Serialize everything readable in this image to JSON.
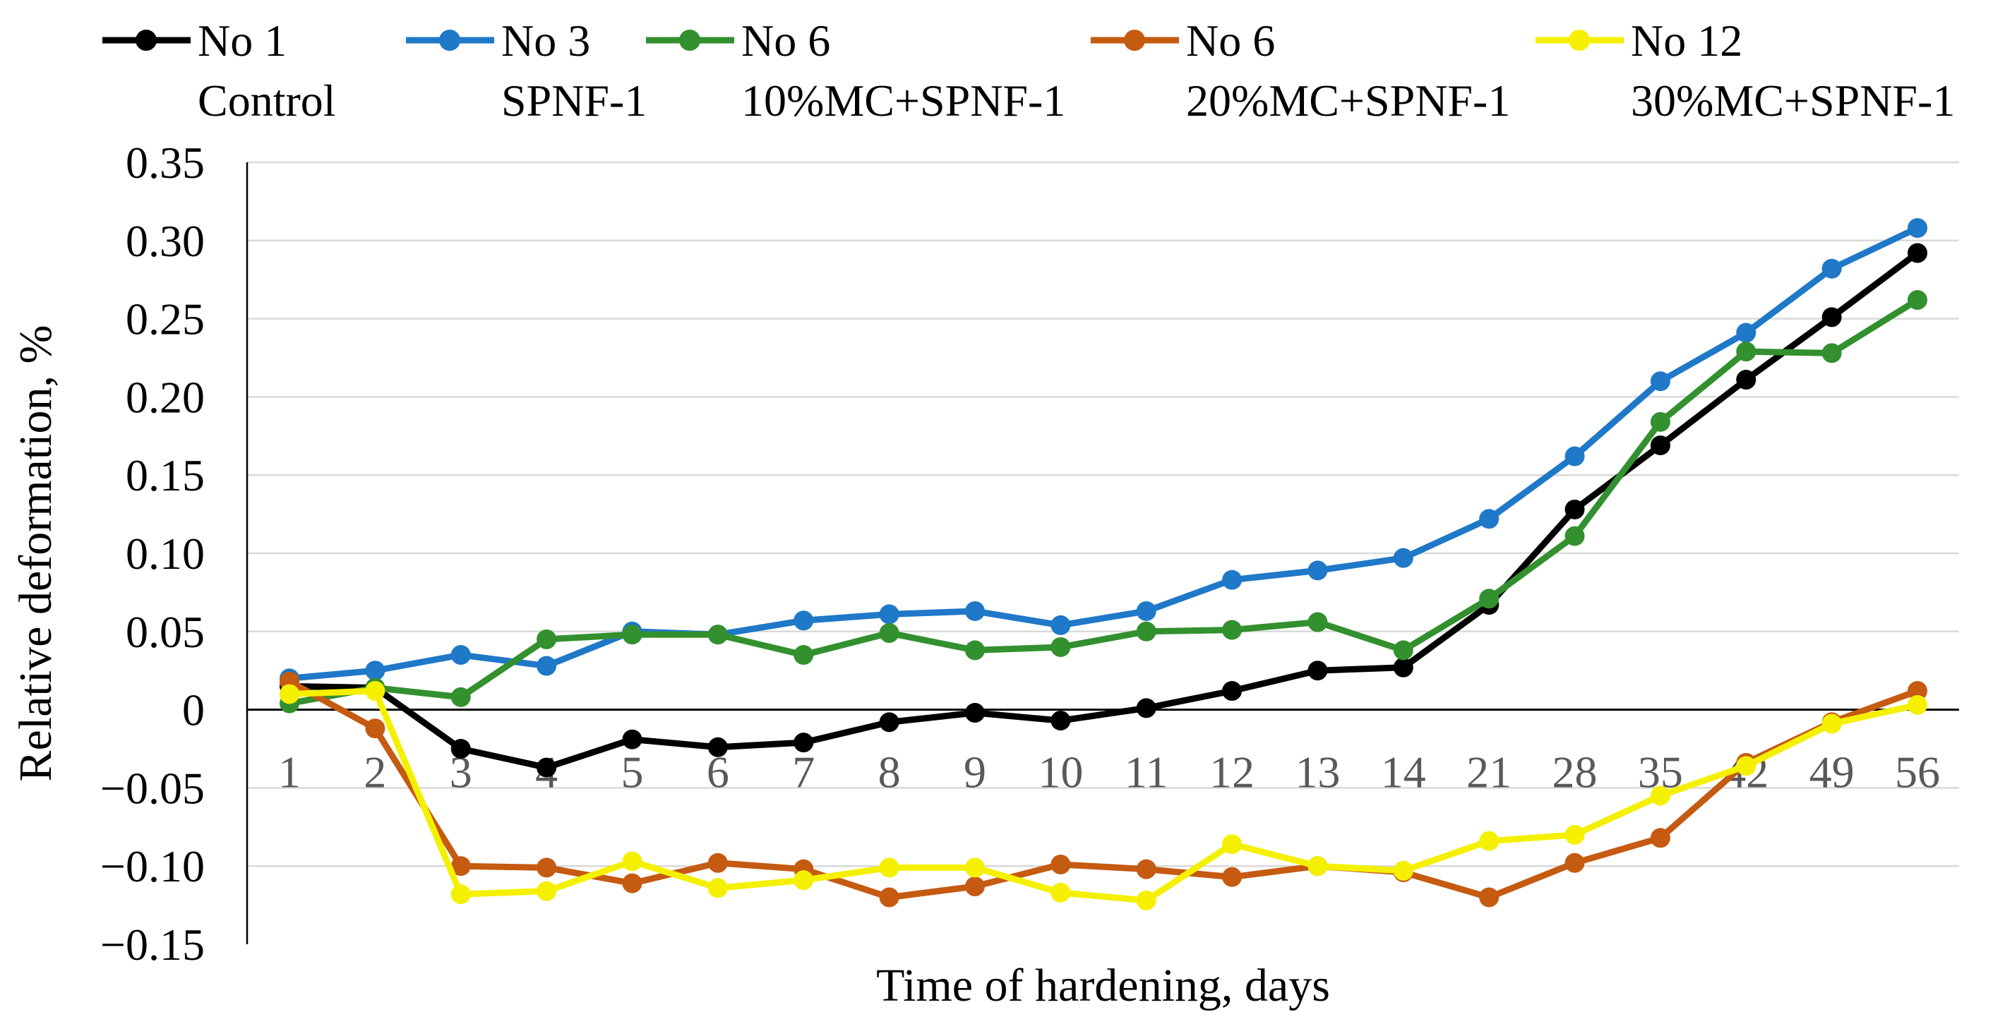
{
  "chart_data": {
    "type": "line",
    "title": "",
    "xlabel": "Time of hardening, days",
    "ylabel": "Relative deformation, %",
    "categories": [
      "1",
      "2",
      "3",
      "4",
      "5",
      "6",
      "7",
      "8",
      "9",
      "10",
      "11",
      "12",
      "13",
      "14",
      "21",
      "28",
      "35",
      "42",
      "49",
      "56"
    ],
    "ylim": [
      -0.15,
      0.35
    ],
    "yticks": [
      -0.15,
      -0.1,
      -0.05,
      0,
      0.05,
      0.1,
      0.15,
      0.2,
      0.25,
      0.3,
      0.35
    ],
    "ytick_labels": [
      "−0.15",
      "−0.10",
      "−0.05",
      "0",
      "0.05",
      "0.10",
      "0.15",
      "0.20",
      "0.25",
      "0.30",
      "0.35"
    ],
    "grid": true,
    "legend_position": "top",
    "series": [
      {
        "name": "No 1",
        "description": "Control",
        "color": "#000000",
        "values": [
          0.015,
          0.014,
          -0.025,
          -0.037,
          -0.019,
          -0.024,
          -0.021,
          -0.008,
          -0.002,
          -0.007,
          0.001,
          0.012,
          0.025,
          0.027,
          0.067,
          0.128,
          0.169,
          0.211,
          0.251,
          0.292
        ]
      },
      {
        "name": "No 3",
        "description": "SPNF-1",
        "color": "#1f78c8",
        "values": [
          0.02,
          0.025,
          0.035,
          0.028,
          0.05,
          0.048,
          0.057,
          0.061,
          0.063,
          0.054,
          0.063,
          0.083,
          0.089,
          0.097,
          0.122,
          0.162,
          0.21,
          0.241,
          0.282,
          0.308
        ]
      },
      {
        "name": "No 6",
        "description": "10%MC+SPNF-1",
        "color": "#33902f",
        "values": [
          0.004,
          0.014,
          0.008,
          0.045,
          0.048,
          0.048,
          0.035,
          0.049,
          0.038,
          0.04,
          0.05,
          0.051,
          0.056,
          0.038,
          0.071,
          0.111,
          0.184,
          0.229,
          0.228,
          0.262
        ]
      },
      {
        "name": "No 6",
        "description": "20%MC+SPNF-1",
        "color": "#c55a11",
        "values": [
          0.018,
          -0.012,
          -0.1,
          -0.101,
          -0.111,
          -0.098,
          -0.102,
          -0.12,
          -0.113,
          -0.099,
          -0.102,
          -0.107,
          -0.1,
          -0.104,
          -0.12,
          -0.098,
          -0.082,
          -0.034,
          -0.008,
          0.012
        ]
      },
      {
        "name": "No 12",
        "description": "30%MC+SPNF-1",
        "color": "#f5f000",
        "values": [
          0.01,
          0.012,
          -0.118,
          -0.116,
          -0.097,
          -0.114,
          -0.109,
          -0.101,
          -0.101,
          -0.117,
          -0.122,
          -0.086,
          -0.1,
          -0.103,
          -0.084,
          -0.08,
          -0.055,
          -0.036,
          -0.009,
          0.003
        ]
      }
    ]
  }
}
